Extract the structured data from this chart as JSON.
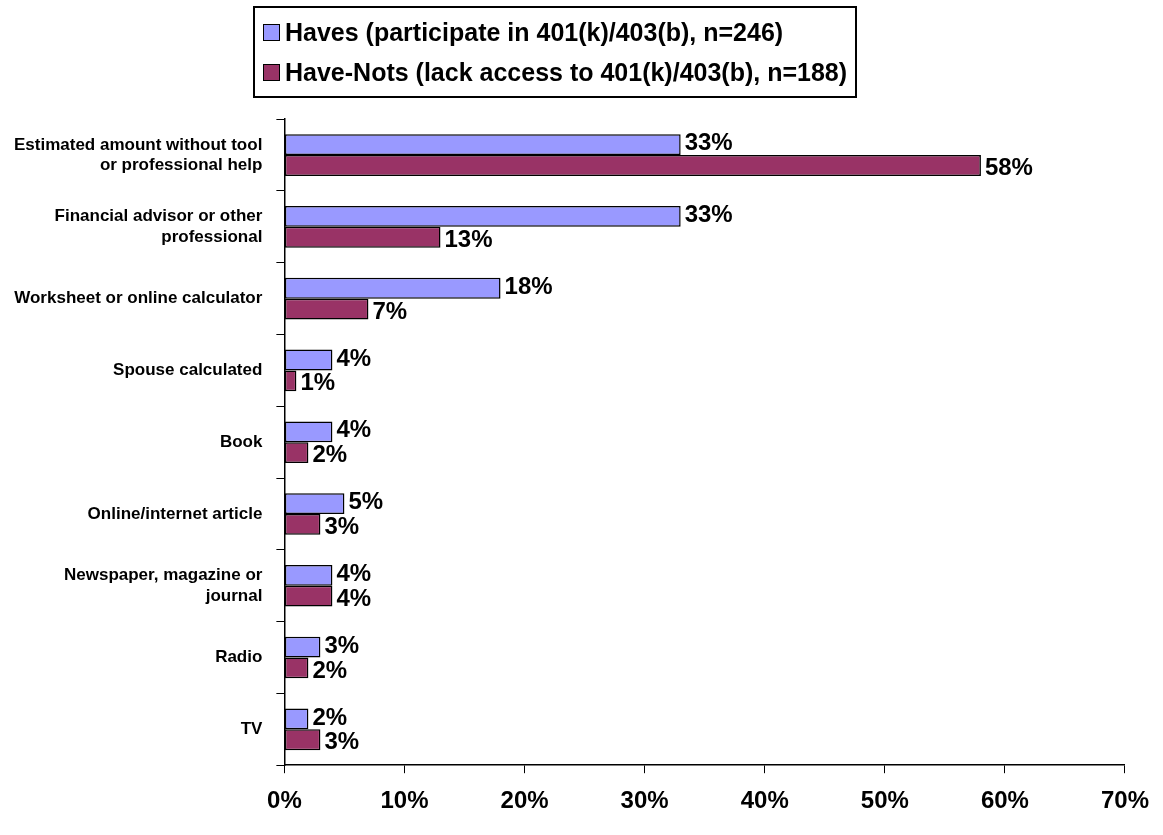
{
  "chart_data": {
    "type": "bar",
    "orientation": "horizontal",
    "legend": "top",
    "categories": [
      "Estimated amount without tool or professional help",
      "Financial advisor or other professional",
      "Worksheet or online calculator",
      "Spouse calculated",
      "Book",
      "Online/internet article",
      "Newspaper, magazine or journal",
      "Radio",
      "TV"
    ],
    "series": [
      {
        "name": "Haves (participate in 401(k)/403(b), n=246)",
        "color": "#9999ff",
        "values": [
          33,
          33,
          18,
          4,
          4,
          5,
          4,
          3,
          2
        ],
        "value_labels": [
          "33%",
          "33%",
          "18%",
          "4%",
          "4%",
          "5%",
          "4%",
          "3%",
          "2%"
        ]
      },
      {
        "name": "Have-Nots (lack access to 401(k)/403(b), n=188)",
        "color": "#993366",
        "values": [
          58,
          13,
          7,
          1,
          2,
          3,
          4,
          2,
          3
        ],
        "value_labels": [
          "58%",
          "13%",
          "7%",
          "1%",
          "2%",
          "3%",
          "4%",
          "2%",
          "3%"
        ]
      }
    ],
    "xlim": [
      0,
      70
    ],
    "xticks": [
      {
        "value": 0,
        "label": "0%"
      },
      {
        "value": 10,
        "label": "10%"
      },
      {
        "value": 20,
        "label": "20%"
      },
      {
        "value": 30,
        "label": "30%"
      },
      {
        "value": 40,
        "label": "40%"
      },
      {
        "value": 50,
        "label": "50%"
      },
      {
        "value": 60,
        "label": "60%"
      },
      {
        "value": 70,
        "label": "70%"
      }
    ],
    "grid": false
  }
}
